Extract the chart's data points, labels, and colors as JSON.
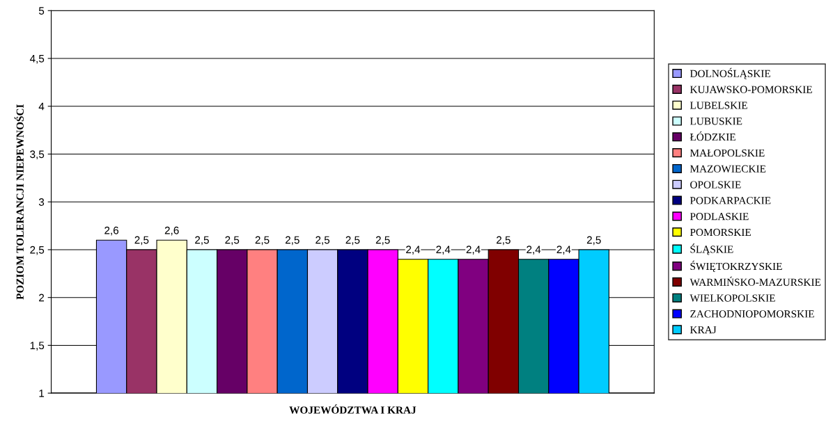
{
  "chart_data": {
    "type": "bar",
    "xlabel": "WOJEWÓDZTWA I KRAJ",
    "ylabel": "POZIOM TOLERANCJI NIEPEWNOŚCI",
    "categories": [
      null
    ],
    "series": [
      {
        "name": "DOLNOŚLĄSKIE",
        "color": "#9999ff",
        "values": [
          2.6
        ],
        "value_labels": [
          "2,6"
        ]
      },
      {
        "name": "KUJAWSKO-POMORSKIE",
        "color": "#993366",
        "values": [
          2.5
        ],
        "value_labels": [
          "2,5"
        ]
      },
      {
        "name": "LUBELSKIE",
        "color": "#ffffcc",
        "values": [
          2.6
        ],
        "value_labels": [
          "2,6"
        ]
      },
      {
        "name": "LUBUSKIE",
        "color": "#ccffff",
        "values": [
          2.5
        ],
        "value_labels": [
          "2,5"
        ]
      },
      {
        "name": "ŁÓDZKIE",
        "color": "#660066",
        "values": [
          2.5
        ],
        "value_labels": [
          "2,5"
        ]
      },
      {
        "name": "MAŁOPOLSKIE",
        "color": "#ff8080",
        "values": [
          2.5
        ],
        "value_labels": [
          "2,5"
        ]
      },
      {
        "name": "MAZOWIECKIE",
        "color": "#0066cc",
        "values": [
          2.5
        ],
        "value_labels": [
          "2,5"
        ]
      },
      {
        "name": "OPOLSKIE",
        "color": "#ccccff",
        "values": [
          2.5
        ],
        "value_labels": [
          "2,5"
        ]
      },
      {
        "name": "PODKARPACKIE",
        "color": "#000080",
        "values": [
          2.5
        ],
        "value_labels": [
          "2,5"
        ]
      },
      {
        "name": "PODLASKIE",
        "color": "#ff00ff",
        "values": [
          2.5
        ],
        "value_labels": [
          "2,5"
        ]
      },
      {
        "name": "POMORSKIE",
        "color": "#ffff00",
        "values": [
          2.4
        ],
        "value_labels": [
          "2,4"
        ]
      },
      {
        "name": "ŚLĄSKIE",
        "color": "#00ffff",
        "values": [
          2.4
        ],
        "value_labels": [
          "2,4"
        ]
      },
      {
        "name": "ŚWIĘTOKRZYSKIE",
        "color": "#800080",
        "values": [
          2.4
        ],
        "value_labels": [
          "2,4"
        ]
      },
      {
        "name": "WARMIŃSKO-MAZURSKIE",
        "color": "#800000",
        "values": [
          2.5
        ],
        "value_labels": [
          "2,5"
        ]
      },
      {
        "name": "WIELKOPOLSKIE",
        "color": "#008080",
        "values": [
          2.4
        ],
        "value_labels": [
          "2,4"
        ]
      },
      {
        "name": "ZACHODNIOPOMORSKIE",
        "color": "#0000ff",
        "values": [
          2.4
        ],
        "value_labels": [
          "2,4"
        ]
      },
      {
        "name": "KRAJ",
        "color": "#00ccff",
        "values": [
          2.5
        ],
        "value_labels": [
          "2,5"
        ]
      }
    ],
    "ylim": [
      1,
      5
    ],
    "yticks": [
      {
        "value": 1,
        "label": "1"
      },
      {
        "value": 1.5,
        "label": "1,5"
      },
      {
        "value": 2,
        "label": "2"
      },
      {
        "value": 2.5,
        "label": "2,5"
      },
      {
        "value": 3,
        "label": "3"
      },
      {
        "value": 3.5,
        "label": "3,5"
      },
      {
        "value": 4,
        "label": "4"
      },
      {
        "value": 4.5,
        "label": "4,5"
      },
      {
        "value": 5,
        "label": "5"
      }
    ],
    "grid": "y",
    "legend": "right"
  }
}
